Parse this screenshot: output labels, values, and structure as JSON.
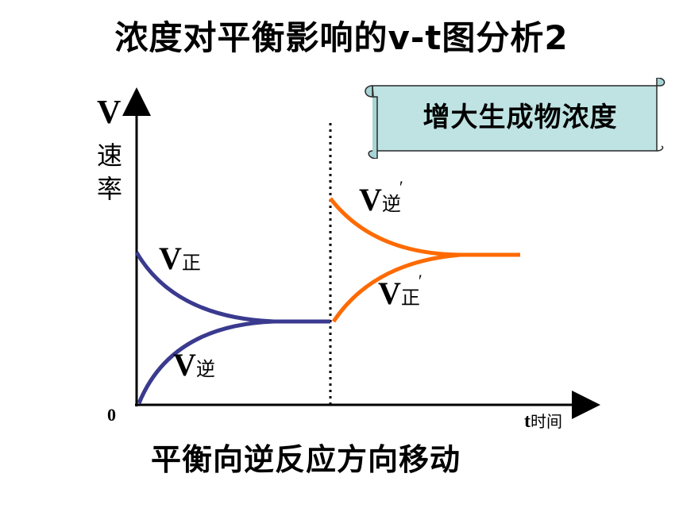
{
  "title": "浓度对平衡影响的v-t图分析2",
  "banner": "增大生成物浓度",
  "axis": {
    "y_symbol": "V",
    "y_text": "速率",
    "origin": "0",
    "x_symbol": "t",
    "x_text": "时间"
  },
  "curves": {
    "v_forward": {
      "symbol": "V",
      "sub": "正",
      "prime": ""
    },
    "v_reverse": {
      "symbol": "V",
      "sub": "逆",
      "prime": ""
    },
    "v_reverse_new": {
      "symbol": "V",
      "sub": "逆",
      "prime": "′"
    },
    "v_forward_new": {
      "symbol": "V",
      "sub": "正",
      "prime": "′"
    }
  },
  "caption": "平衡向逆反应方向移动",
  "colors": {
    "original_curves": "#3a3a8f",
    "new_curves": "#ff6a00",
    "banner_fill": "#bfe3e3"
  }
}
